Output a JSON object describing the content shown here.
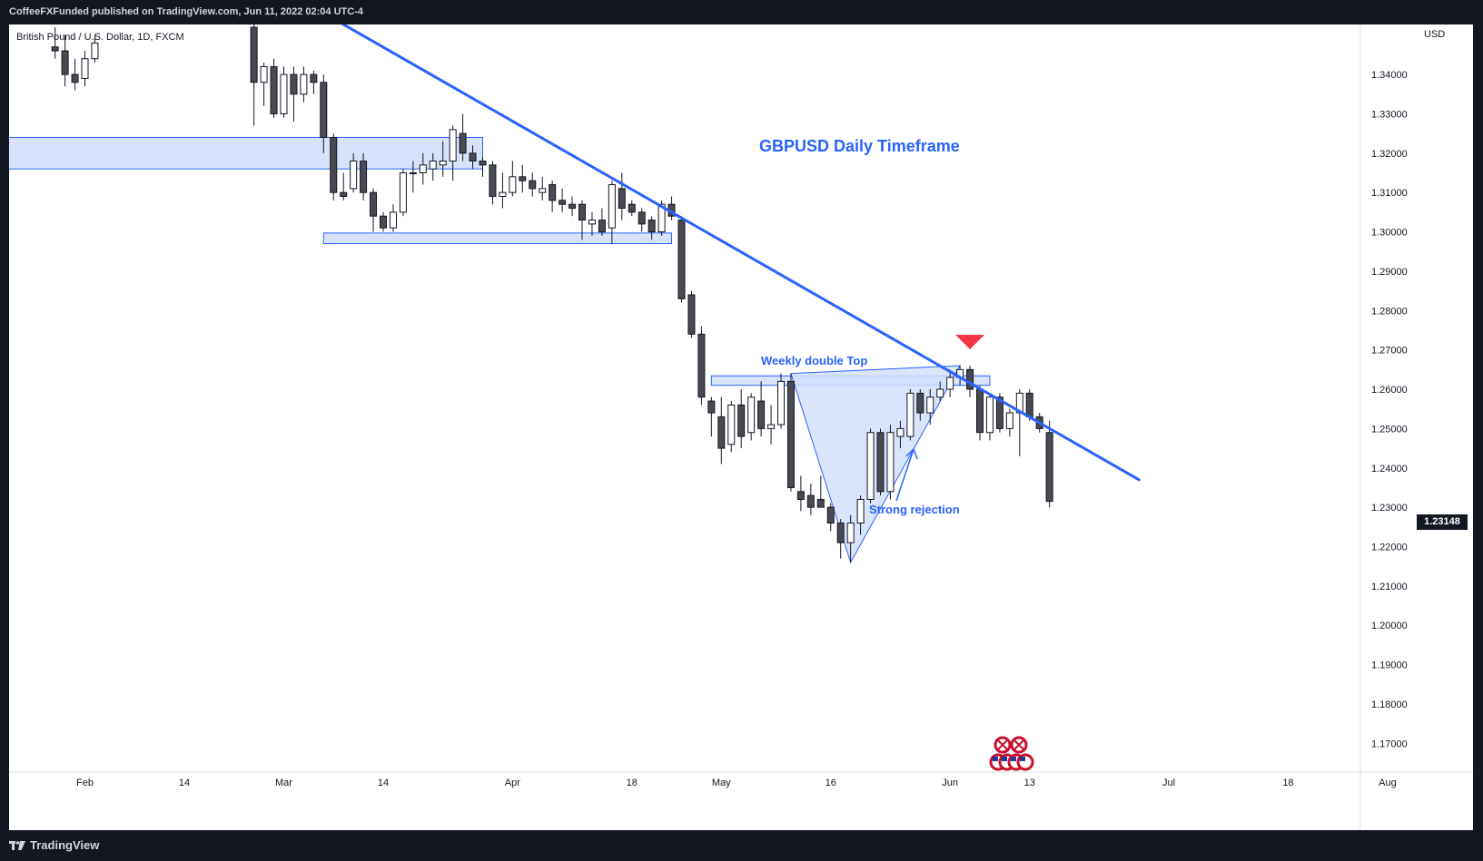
{
  "header": {
    "published_text": "CoffeeFXFunded published on TradingView.com, Jun 11, 2022 02:04 UTC-4"
  },
  "footer": {
    "brand": "TradingView",
    "logo_icon": "tradingview-logo-icon"
  },
  "chart_data": {
    "type": "candlestick",
    "symbol_label": "British Pound / U.S. Dollar, 1D, FXCM",
    "title": "GBPUSD Daily Timeframe",
    "currency": "USD",
    "last_price": "1.23148",
    "ylim": [
      1.1627,
      1.3527
    ],
    "y_ticks": [
      "1.34000",
      "1.33000",
      "1.32000",
      "1.31000",
      "1.30000",
      "1.29000",
      "1.28000",
      "1.27000",
      "1.26000",
      "1.25000",
      "1.24000",
      "1.23000",
      "1.22000",
      "1.21000",
      "1.20000",
      "1.19000",
      "1.18000",
      "1.17000"
    ],
    "x_ticks": [
      {
        "label": "Feb",
        "i": 0
      },
      {
        "label": "14",
        "i": 10
      },
      {
        "label": "Mar",
        "i": 20
      },
      {
        "label": "14",
        "i": 30
      },
      {
        "label": "Apr",
        "i": 43
      },
      {
        "label": "18",
        "i": 55
      },
      {
        "label": "May",
        "i": 64
      },
      {
        "label": "16",
        "i": 75
      },
      {
        "label": "Jun",
        "i": 87
      },
      {
        "label": "13",
        "i": 95
      },
      {
        "label": "Jul",
        "i": 109
      },
      {
        "label": "18",
        "i": 121
      },
      {
        "label": "Aug",
        "i": 131
      }
    ],
    "candles": [
      {
        "i": -3,
        "o": 1.347,
        "h": 1.352,
        "l": 1.344,
        "c": 1.346
      },
      {
        "i": -2,
        "o": 1.346,
        "h": 1.35,
        "l": 1.337,
        "c": 1.34
      },
      {
        "i": -1,
        "o": 1.34,
        "h": 1.344,
        "l": 1.336,
        "c": 1.338
      },
      {
        "i": 0,
        "o": 1.339,
        "h": 1.346,
        "l": 1.337,
        "c": 1.344
      },
      {
        "i": 1,
        "o": 1.344,
        "h": 1.35,
        "l": 1.343,
        "c": 1.348
      },
      {
        "i": 17,
        "o": 1.352,
        "h": 1.356,
        "l": 1.327,
        "c": 1.338
      },
      {
        "i": 18,
        "o": 1.338,
        "h": 1.343,
        "l": 1.332,
        "c": 1.342
      },
      {
        "i": 19,
        "o": 1.342,
        "h": 1.344,
        "l": 1.329,
        "c": 1.33
      },
      {
        "i": 20,
        "o": 1.33,
        "h": 1.342,
        "l": 1.329,
        "c": 1.34
      },
      {
        "i": 21,
        "o": 1.34,
        "h": 1.342,
        "l": 1.328,
        "c": 1.335
      },
      {
        "i": 22,
        "o": 1.335,
        "h": 1.342,
        "l": 1.333,
        "c": 1.34
      },
      {
        "i": 23,
        "o": 1.34,
        "h": 1.341,
        "l": 1.335,
        "c": 1.338
      },
      {
        "i": 24,
        "o": 1.338,
        "h": 1.34,
        "l": 1.32,
        "c": 1.324
      },
      {
        "i": 25,
        "o": 1.324,
        "h": 1.325,
        "l": 1.308,
        "c": 1.31
      },
      {
        "i": 26,
        "o": 1.31,
        "h": 1.315,
        "l": 1.308,
        "c": 1.309
      },
      {
        "i": 27,
        "o": 1.311,
        "h": 1.32,
        "l": 1.31,
        "c": 1.318
      },
      {
        "i": 28,
        "o": 1.318,
        "h": 1.32,
        "l": 1.308,
        "c": 1.31
      },
      {
        "i": 29,
        "o": 1.31,
        "h": 1.311,
        "l": 1.3,
        "c": 1.304
      },
      {
        "i": 30,
        "o": 1.304,
        "h": 1.305,
        "l": 1.3,
        "c": 1.301
      },
      {
        "i": 31,
        "o": 1.301,
        "h": 1.307,
        "l": 1.3,
        "c": 1.305
      },
      {
        "i": 32,
        "o": 1.305,
        "h": 1.316,
        "l": 1.304,
        "c": 1.315
      },
      {
        "i": 33,
        "o": 1.315,
        "h": 1.318,
        "l": 1.31,
        "c": 1.315
      },
      {
        "i": 34,
        "o": 1.315,
        "h": 1.32,
        "l": 1.312,
        "c": 1.317
      },
      {
        "i": 35,
        "o": 1.316,
        "h": 1.32,
        "l": 1.313,
        "c": 1.318
      },
      {
        "i": 36,
        "o": 1.317,
        "h": 1.323,
        "l": 1.314,
        "c": 1.318
      },
      {
        "i": 37,
        "o": 1.318,
        "h": 1.327,
        "l": 1.313,
        "c": 1.326
      },
      {
        "i": 38,
        "o": 1.325,
        "h": 1.33,
        "l": 1.318,
        "c": 1.32
      },
      {
        "i": 39,
        "o": 1.32,
        "h": 1.322,
        "l": 1.316,
        "c": 1.318
      },
      {
        "i": 40,
        "o": 1.318,
        "h": 1.319,
        "l": 1.314,
        "c": 1.317
      },
      {
        "i": 41,
        "o": 1.317,
        "h": 1.318,
        "l": 1.307,
        "c": 1.309
      },
      {
        "i": 42,
        "o": 1.309,
        "h": 1.315,
        "l": 1.306,
        "c": 1.31
      },
      {
        "i": 43,
        "o": 1.31,
        "h": 1.318,
        "l": 1.309,
        "c": 1.314
      },
      {
        "i": 44,
        "o": 1.314,
        "h": 1.317,
        "l": 1.31,
        "c": 1.313
      },
      {
        "i": 45,
        "o": 1.313,
        "h": 1.315,
        "l": 1.309,
        "c": 1.311
      },
      {
        "i": 46,
        "o": 1.31,
        "h": 1.314,
        "l": 1.308,
        "c": 1.311
      },
      {
        "i": 47,
        "o": 1.312,
        "h": 1.313,
        "l": 1.305,
        "c": 1.308
      },
      {
        "i": 48,
        "o": 1.308,
        "h": 1.311,
        "l": 1.305,
        "c": 1.307
      },
      {
        "i": 49,
        "o": 1.307,
        "h": 1.309,
        "l": 1.304,
        "c": 1.306
      },
      {
        "i": 50,
        "o": 1.307,
        "h": 1.308,
        "l": 1.298,
        "c": 1.303
      },
      {
        "i": 51,
        "o": 1.302,
        "h": 1.305,
        "l": 1.299,
        "c": 1.303
      },
      {
        "i": 52,
        "o": 1.303,
        "h": 1.306,
        "l": 1.299,
        "c": 1.3
      },
      {
        "i": 53,
        "o": 1.301,
        "h": 1.313,
        "l": 1.297,
        "c": 1.312
      },
      {
        "i": 54,
        "o": 1.311,
        "h": 1.315,
        "l": 1.303,
        "c": 1.306
      },
      {
        "i": 55,
        "o": 1.307,
        "h": 1.308,
        "l": 1.304,
        "c": 1.305
      },
      {
        "i": 56,
        "o": 1.305,
        "h": 1.306,
        "l": 1.3,
        "c": 1.302
      },
      {
        "i": 57,
        "o": 1.303,
        "h": 1.304,
        "l": 1.298,
        "c": 1.3
      },
      {
        "i": 58,
        "o": 1.3,
        "h": 1.308,
        "l": 1.299,
        "c": 1.307
      },
      {
        "i": 59,
        "o": 1.307,
        "h": 1.309,
        "l": 1.303,
        "c": 1.304
      },
      {
        "i": 60,
        "o": 1.303,
        "h": 1.304,
        "l": 1.282,
        "c": 1.283
      },
      {
        "i": 61,
        "o": 1.284,
        "h": 1.285,
        "l": 1.273,
        "c": 1.274
      },
      {
        "i": 62,
        "o": 1.274,
        "h": 1.276,
        "l": 1.256,
        "c": 1.258
      },
      {
        "i": 63,
        "o": 1.257,
        "h": 1.258,
        "l": 1.248,
        "c": 1.254
      },
      {
        "i": 64,
        "o": 1.253,
        "h": 1.258,
        "l": 1.241,
        "c": 1.245
      },
      {
        "i": 65,
        "o": 1.246,
        "h": 1.257,
        "l": 1.244,
        "c": 1.256
      },
      {
        "i": 66,
        "o": 1.256,
        "h": 1.26,
        "l": 1.245,
        "c": 1.248
      },
      {
        "i": 67,
        "o": 1.249,
        "h": 1.259,
        "l": 1.247,
        "c": 1.258
      },
      {
        "i": 68,
        "o": 1.257,
        "h": 1.262,
        "l": 1.248,
        "c": 1.25
      },
      {
        "i": 69,
        "o": 1.25,
        "h": 1.256,
        "l": 1.246,
        "c": 1.251
      },
      {
        "i": 70,
        "o": 1.251,
        "h": 1.264,
        "l": 1.25,
        "c": 1.262
      },
      {
        "i": 71,
        "o": 1.262,
        "h": 1.264,
        "l": 1.234,
        "c": 1.235
      },
      {
        "i": 72,
        "o": 1.234,
        "h": 1.238,
        "l": 1.229,
        "c": 1.232
      },
      {
        "i": 73,
        "o": 1.233,
        "h": 1.236,
        "l": 1.228,
        "c": 1.23
      },
      {
        "i": 74,
        "o": 1.232,
        "h": 1.238,
        "l": 1.23,
        "c": 1.23
      },
      {
        "i": 75,
        "o": 1.23,
        "h": 1.231,
        "l": 1.224,
        "c": 1.226
      },
      {
        "i": 76,
        "o": 1.226,
        "h": 1.227,
        "l": 1.217,
        "c": 1.221
      },
      {
        "i": 77,
        "o": 1.221,
        "h": 1.228,
        "l": 1.216,
        "c": 1.226
      },
      {
        "i": 78,
        "o": 1.226,
        "h": 1.233,
        "l": 1.223,
        "c": 1.232
      },
      {
        "i": 79,
        "o": 1.232,
        "h": 1.25,
        "l": 1.231,
        "c": 1.249
      },
      {
        "i": 80,
        "o": 1.249,
        "h": 1.25,
        "l": 1.233,
        "c": 1.234
      },
      {
        "i": 81,
        "o": 1.234,
        "h": 1.251,
        "l": 1.232,
        "c": 1.249
      },
      {
        "i": 82,
        "o": 1.248,
        "h": 1.252,
        "l": 1.245,
        "c": 1.25
      },
      {
        "i": 83,
        "o": 1.248,
        "h": 1.26,
        "l": 1.247,
        "c": 1.259
      },
      {
        "i": 84,
        "o": 1.259,
        "h": 1.26,
        "l": 1.252,
        "c": 1.254
      },
      {
        "i": 85,
        "o": 1.254,
        "h": 1.26,
        "l": 1.251,
        "c": 1.258
      },
      {
        "i": 86,
        "o": 1.258,
        "h": 1.262,
        "l": 1.257,
        "c": 1.26
      },
      {
        "i": 87,
        "o": 1.26,
        "h": 1.265,
        "l": 1.258,
        "c": 1.263
      },
      {
        "i": 88,
        "o": 1.263,
        "h": 1.266,
        "l": 1.261,
        "c": 1.265
      },
      {
        "i": 89,
        "o": 1.265,
        "h": 1.266,
        "l": 1.258,
        "c": 1.26
      },
      {
        "i": 90,
        "o": 1.26,
        "h": 1.261,
        "l": 1.247,
        "c": 1.249
      },
      {
        "i": 91,
        "o": 1.249,
        "h": 1.259,
        "l": 1.247,
        "c": 1.258
      },
      {
        "i": 92,
        "o": 1.258,
        "h": 1.259,
        "l": 1.249,
        "c": 1.25
      },
      {
        "i": 93,
        "o": 1.25,
        "h": 1.255,
        "l": 1.248,
        "c": 1.254
      },
      {
        "i": 94,
        "o": 1.254,
        "h": 1.26,
        "l": 1.243,
        "c": 1.259
      },
      {
        "i": 95,
        "o": 1.259,
        "h": 1.26,
        "l": 1.252,
        "c": 1.253
      },
      {
        "i": 96,
        "o": 1.253,
        "h": 1.254,
        "l": 1.249,
        "c": 1.25
      },
      {
        "i": 97,
        "o": 1.249,
        "h": 1.252,
        "l": 1.23,
        "c": 1.2315
      }
    ],
    "zones": [
      {
        "name": "supply-zone-upper",
        "i_start": -10,
        "i_end": 40,
        "top": 1.324,
        "bottom": 1.316
      },
      {
        "name": "support-zone-1.30",
        "i_start": 24,
        "i_end": 59,
        "top": 1.2997,
        "bottom": 1.297
      },
      {
        "name": "double-top-zone",
        "i_start": 63,
        "i_end": 91,
        "top": 1.2634,
        "bottom": 1.261
      }
    ],
    "trendline": {
      "i_start": 22,
      "p_start": 1.3585,
      "i_end": 106,
      "p_end": 1.237
    },
    "annotations": {
      "double_top_label": "Weekly double Top",
      "rejection_label": "Strong rejection"
    },
    "colors": {
      "bull_body": "#ffffff",
      "bear_body": "#4a4a52",
      "candle_border": "#131722",
      "accent": "#2962ff",
      "zone_fill": "#d4e0fb",
      "marker_red": "#f23645"
    }
  }
}
